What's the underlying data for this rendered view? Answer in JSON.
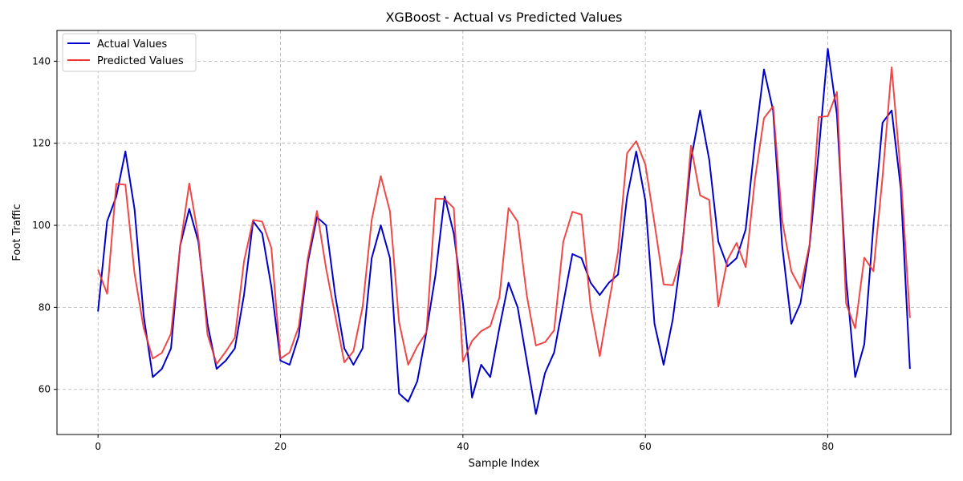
{
  "chart_data": {
    "type": "line",
    "title": "XGBoost - Actual vs Predicted Values",
    "xlabel": "Sample Index",
    "ylabel": "Foot Traffic",
    "xlim": [
      -4.5,
      93.5
    ],
    "ylim": [
      49,
      147.5
    ],
    "xticks": [
      0,
      20,
      40,
      60,
      80
    ],
    "yticks": [
      60,
      80,
      100,
      120,
      140
    ],
    "grid": true,
    "legend_position": "upper-left",
    "series": [
      {
        "name": "Actual Values",
        "color": "#0000cc",
        "values": [
          79,
          101,
          107,
          118,
          104,
          78,
          63,
          65,
          70,
          95,
          104,
          96,
          76,
          65,
          67,
          70,
          83,
          101,
          98,
          85,
          67,
          66,
          73,
          91,
          102,
          100,
          83,
          70,
          66,
          70,
          92,
          100,
          92,
          59,
          57,
          62,
          74,
          88,
          107,
          98,
          81,
          58,
          66,
          63,
          75,
          86,
          80,
          67,
          54,
          64,
          69,
          81,
          93,
          92,
          86,
          83,
          86,
          88,
          107,
          118,
          106,
          76,
          66,
          77,
          94,
          116,
          128,
          116,
          96,
          90,
          92,
          99,
          120,
          138,
          128,
          95,
          76,
          81,
          95,
          118,
          143,
          127,
          87,
          63,
          71,
          100,
          125,
          128,
          109,
          65
        ]
      },
      {
        "name": "Predicted Values",
        "color": "#ee3333",
        "values": [
          89.2,
          83.3,
          110.1,
          109.9,
          88.3,
          75.0,
          67.5,
          68.9,
          73.6,
          94.8,
          110.2,
          97.1,
          73.4,
          66.2,
          69.2,
          72.6,
          91.2,
          101.3,
          100.9,
          94.5,
          67.5,
          69.0,
          75.3,
          92.0,
          103.5,
          89.5,
          78.0,
          66.6,
          69.3,
          80.0,
          101.3,
          112.0,
          103.4,
          76.4,
          66.0,
          70.5,
          73.9,
          106.5,
          106.4,
          104.2,
          66.8,
          71.8,
          74.2,
          75.4,
          82.4,
          104.2,
          100.9,
          82.9,
          70.7,
          71.5,
          74.4,
          96.0,
          103.3,
          102.6,
          80.1,
          68.1,
          81.1,
          93.5,
          117.6,
          120.5,
          114.8,
          100.5,
          85.6,
          85.4,
          93.1,
          119.4,
          107.3,
          106.2,
          80.2,
          91.6,
          95.7,
          89.8,
          111.0,
          126.1,
          129.0,
          101.2,
          88.8,
          84.6,
          95.3,
          126.4,
          126.6,
          132.5,
          81.0,
          74.9,
          92.1,
          88.8,
          111.8,
          138.5,
          112.4,
          77.4
        ]
      }
    ]
  }
}
